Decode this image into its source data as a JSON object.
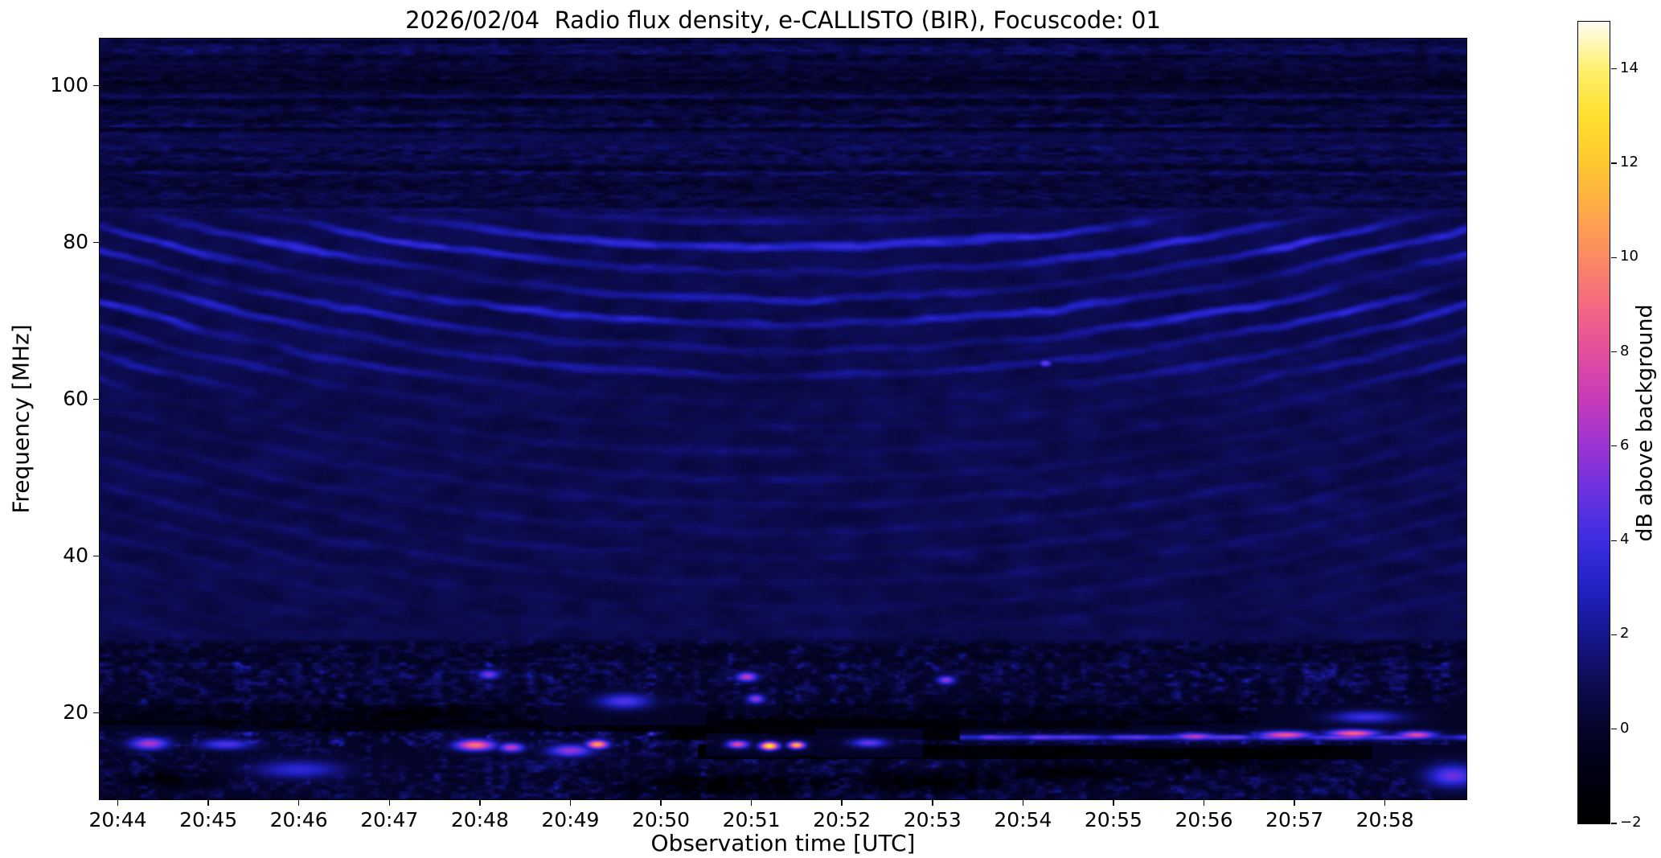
{
  "figure": {
    "background": "#ffffff"
  },
  "chart_data": {
    "type": "heatmap",
    "title": "2026/02/04  Radio flux density, e-CALLISTO (BIR), Focuscode: 01",
    "xlabel": "Observation time [UTC]",
    "ylabel": "Frequency [MHz]",
    "grid": false,
    "x_range_minutes": [
      43.8,
      58.9
    ],
    "x_ticks": [
      {
        "minute": 44,
        "label": "20:44"
      },
      {
        "minute": 45,
        "label": "20:45"
      },
      {
        "minute": 46,
        "label": "20:46"
      },
      {
        "minute": 47,
        "label": "20:47"
      },
      {
        "minute": 48,
        "label": "20:48"
      },
      {
        "minute": 49,
        "label": "20:49"
      },
      {
        "minute": 50,
        "label": "20:50"
      },
      {
        "minute": 51,
        "label": "20:51"
      },
      {
        "minute": 52,
        "label": "20:52"
      },
      {
        "minute": 53,
        "label": "20:53"
      },
      {
        "minute": 54,
        "label": "20:54"
      },
      {
        "minute": 55,
        "label": "20:55"
      },
      {
        "minute": 56,
        "label": "20:56"
      },
      {
        "minute": 57,
        "label": "20:57"
      },
      {
        "minute": 58,
        "label": "20:58"
      }
    ],
    "y_range_mhz": [
      9,
      106
    ],
    "y_ticks": [
      {
        "value": 100,
        "label": "100"
      },
      {
        "value": 80,
        "label": "80"
      },
      {
        "value": 60,
        "label": "60"
      },
      {
        "value": 40,
        "label": "40"
      },
      {
        "value": 20,
        "label": "20"
      }
    ],
    "colorbar": {
      "label": "dB above background",
      "vmin": -2,
      "vmax": 15,
      "ticks": [
        {
          "value": 14,
          "label": "14"
        },
        {
          "value": 12,
          "label": "12"
        },
        {
          "value": 10,
          "label": "10"
        },
        {
          "value": 8,
          "label": "8"
        },
        {
          "value": 6,
          "label": "6"
        },
        {
          "value": 4,
          "label": "4"
        },
        {
          "value": 2,
          "label": "2"
        },
        {
          "value": 0,
          "label": "0"
        },
        {
          "value": -2,
          "label": "−2"
        }
      ],
      "colormap": [
        [
          0.0,
          "#000000"
        ],
        [
          0.0588,
          "#010112"
        ],
        [
          0.1176,
          "#05052a"
        ],
        [
          0.1765,
          "#0d0d55"
        ],
        [
          0.2353,
          "#16168f"
        ],
        [
          0.2941,
          "#2222c4"
        ],
        [
          0.3529,
          "#3d2ee0"
        ],
        [
          0.4118,
          "#6a32e0"
        ],
        [
          0.4706,
          "#9c34d4"
        ],
        [
          0.5294,
          "#c83bbb"
        ],
        [
          0.5882,
          "#e44f9f"
        ],
        [
          0.6471,
          "#f46a82"
        ],
        [
          0.7059,
          "#fc8a64"
        ],
        [
          0.7647,
          "#feaa4b"
        ],
        [
          0.8235,
          "#fec832"
        ],
        [
          0.8824,
          "#fee02e"
        ],
        [
          0.9412,
          "#fef06e"
        ],
        [
          1.0,
          "#fffdf0"
        ]
      ]
    },
    "render": {
      "base_level_db": 0.85,
      "base_noise_db": 0.55,
      "chevron_center_minute": 51.4,
      "fringe_spacing_mhz": 3.3,
      "fringe_curvature": 0.42,
      "fringe_wobble": 2.3,
      "fringe_bands": [
        {
          "center": 79.8,
          "sigma": 3.2,
          "amp": 2.4
        },
        {
          "center": 71.2,
          "sigma": 3.0,
          "amp": 2.1
        },
        {
          "center": 64.5,
          "sigma": 2.6,
          "amp": 1.1
        },
        {
          "center": 47.0,
          "sigma": 16.0,
          "amp": 0.45
        }
      ],
      "quiet_top_mhz": 83.5,
      "rfi_top_mhz": 29.5,
      "bottom_bands": [
        {
          "f0": 26.5,
          "f1": 29.5,
          "base": -0.5,
          "amp": 2.6
        },
        {
          "f0": 23.5,
          "f1": 26.5,
          "base": -0.3,
          "amp": 3.4
        },
        {
          "f0": 21.0,
          "f1": 23.5,
          "base": -0.5,
          "amp": 3.0
        },
        {
          "f0": 19.0,
          "f1": 21.0,
          "base": -1.1,
          "amp": 2.4
        },
        {
          "f0": 17.6,
          "f1": 19.0,
          "base": -1.6,
          "amp": 2.2
        },
        {
          "f0": 15.7,
          "f1": 17.6,
          "base": -0.7,
          "amp": 4.6
        },
        {
          "f0": 14.2,
          "f1": 15.7,
          "base": -0.7,
          "amp": 3.0
        },
        {
          "f0": 9.0,
          "f1": 14.2,
          "base": -0.4,
          "amp": 3.0
        }
      ],
      "black_band_right": {
        "f0": 14.2,
        "f1": 15.9,
        "t_start": 50.4,
        "level": -1.6
      },
      "black_band_mid": {
        "f0": 16.6,
        "f1": 19.2,
        "t0": 50.1,
        "t1": 53.5,
        "level": -1.5
      },
      "bright_line": {
        "f": 16.9,
        "sigma": 0.35,
        "t_start": 53.3,
        "amp": 4.2
      },
      "hotspots": [
        {
          "t": 44.35,
          "f": 16.1,
          "v": 6.5,
          "rt": 0.22,
          "rf": 0.8
        },
        {
          "t": 45.2,
          "f": 16.0,
          "v": 4.5,
          "rt": 0.3,
          "rf": 0.7
        },
        {
          "t": 46.0,
          "f": 12.8,
          "v": 3.5,
          "rt": 0.5,
          "rf": 1.2
        },
        {
          "t": 47.95,
          "f": 15.9,
          "v": 9.5,
          "rt": 0.22,
          "rf": 0.7
        },
        {
          "t": 48.35,
          "f": 15.6,
          "v": 7.0,
          "rt": 0.14,
          "rf": 0.6
        },
        {
          "t": 48.1,
          "f": 24.9,
          "v": 5.5,
          "rt": 0.12,
          "rf": 0.6
        },
        {
          "t": 49.3,
          "f": 16.0,
          "v": 11.0,
          "rt": 0.12,
          "rf": 0.55
        },
        {
          "t": 49.0,
          "f": 15.2,
          "v": 6.0,
          "rt": 0.25,
          "rf": 0.8
        },
        {
          "t": 49.6,
          "f": 21.5,
          "v": 4.5,
          "rt": 0.3,
          "rf": 1.0
        },
        {
          "t": 50.85,
          "f": 16.0,
          "v": 8.0,
          "rt": 0.12,
          "rf": 0.5
        },
        {
          "t": 51.2,
          "f": 15.8,
          "v": 14.0,
          "rt": 0.1,
          "rf": 0.5
        },
        {
          "t": 51.5,
          "f": 15.9,
          "v": 12.0,
          "rt": 0.09,
          "rf": 0.45
        },
        {
          "t": 51.05,
          "f": 21.8,
          "v": 6.0,
          "rt": 0.1,
          "rf": 0.6
        },
        {
          "t": 50.95,
          "f": 24.6,
          "v": 7.0,
          "rt": 0.12,
          "rf": 0.6
        },
        {
          "t": 52.3,
          "f": 16.2,
          "v": 5.0,
          "rt": 0.2,
          "rf": 0.6
        },
        {
          "t": 53.15,
          "f": 24.2,
          "v": 6.0,
          "rt": 0.1,
          "rf": 0.55
        },
        {
          "t": 54.25,
          "f": 64.6,
          "v": 5.5,
          "rt": 0.07,
          "rf": 0.45
        },
        {
          "t": 55.9,
          "f": 17.0,
          "v": 7.0,
          "rt": 0.25,
          "rf": 0.45
        },
        {
          "t": 56.9,
          "f": 17.2,
          "v": 8.5,
          "rt": 0.3,
          "rf": 0.5
        },
        {
          "t": 57.65,
          "f": 17.4,
          "v": 9.0,
          "rt": 0.28,
          "rf": 0.5
        },
        {
          "t": 57.8,
          "f": 19.5,
          "v": 4.0,
          "rt": 0.4,
          "rf": 0.8
        },
        {
          "t": 58.35,
          "f": 17.2,
          "v": 8.0,
          "rt": 0.22,
          "rf": 0.5
        },
        {
          "t": 58.75,
          "f": 12.0,
          "v": 5.0,
          "rt": 0.3,
          "rf": 1.5
        }
      ],
      "dark_patches": [
        {
          "t": 50.7,
          "f": 10.8,
          "rt": 1.0,
          "rf": 1.3,
          "d": 2.2
        },
        {
          "t": 52.9,
          "f": 11.3,
          "rt": 0.9,
          "rf": 1.2,
          "d": 2.0
        },
        {
          "t": 54.6,
          "f": 12.5,
          "rt": 0.7,
          "rf": 1.0,
          "d": 1.8
        },
        {
          "t": 47.3,
          "f": 19.8,
          "rt": 0.6,
          "rf": 0.8,
          "d": 1.5
        },
        {
          "t": 44.6,
          "f": 11.5,
          "rt": 0.5,
          "rf": 1.0,
          "d": 1.5
        },
        {
          "t": 56.3,
          "f": 13.5,
          "rt": 0.8,
          "rf": 1.0,
          "d": 1.6
        }
      ]
    }
  }
}
